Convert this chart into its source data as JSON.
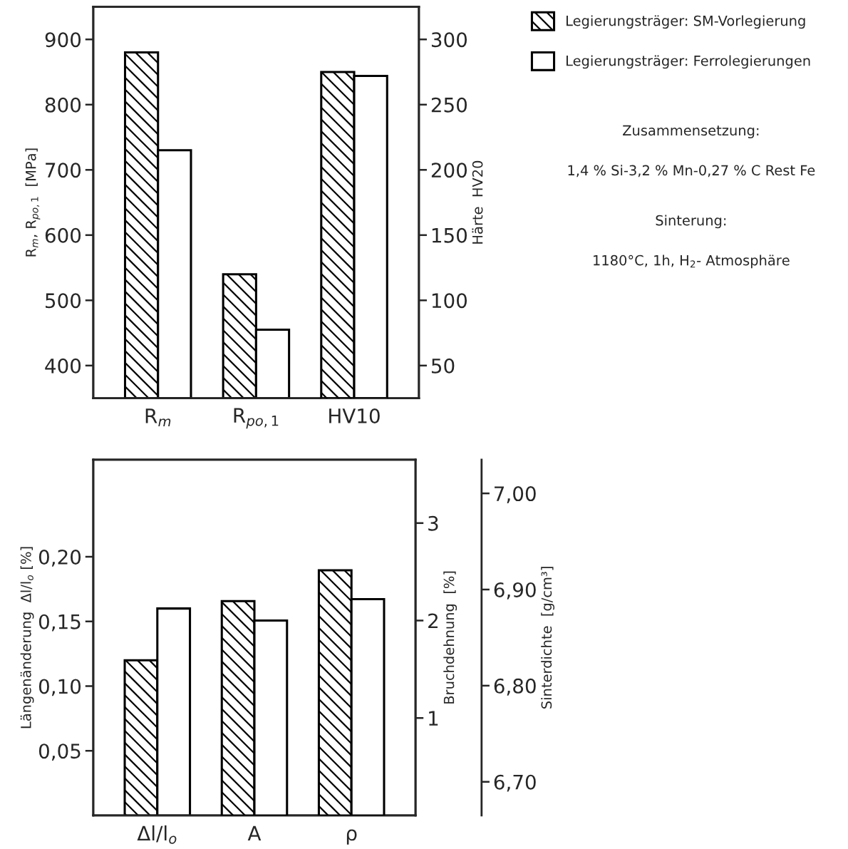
{
  "chart_data": [
    {
      "type": "bar",
      "categories": [
        "R$_{m}$",
        "R$_{po,1}$",
        "HV10"
      ],
      "series": [
        {
          "name": "Legierungsträger: SM-Vorlegierung",
          "color": "#000000",
          "values": [
            880,
            540,
            null
          ]
        },
        {
          "name": "Legierungsträger: Ferrolegierungen",
          "color": "#ffffff",
          "values": [
            730,
            455,
            null
          ]
        },
        {
          "color": "#000000",
          "values": [
            null,
            null,
            275
          ],
          "axis": "y2"
        },
        {
          "color": "#ffffff",
          "values": [
            null,
            null,
            272
          ],
          "axis": "y2"
        }
      ],
      "ylabel": "R$_{m}$, R$_{po,1}$  [MPa]",
      "y2label": "Härte  HV20",
      "ylim": [
        350,
        950
      ],
      "yticks": [
        400,
        500,
        600,
        700,
        800,
        900
      ],
      "y2lim": [
        25,
        325
      ],
      "y2ticks": [
        50,
        100,
        150,
        200,
        250,
        300
      ],
      "legend": "top right",
      "annotations": [
        "Zusammensetzung:",
        "1,4 % Si-3,2 % Mn-0,27 % C Rest Fe",
        "Sinterung:",
        "1180°C, 1h, H$_{2}$- Atmosphäre"
      ]
    },
    {
      "type": "bar",
      "categories": [
        "Δl/l$_{o}$",
        "A",
        "ρ"
      ],
      "series": [
        {
          "color": "#000000",
          "values": [
            0.12,
            null,
            null
          ]
        },
        {
          "color": "#ffffff",
          "values": [
            0.16,
            null,
            null
          ]
        },
        {
          "color": "#000000",
          "values": [
            null,
            2.2,
            null
          ],
          "axis": "y2"
        },
        {
          "color": "#ffffff",
          "values": [
            null,
            2.0,
            null
          ],
          "axis": "y2"
        },
        {
          "color": "#000000",
          "values": [
            null,
            null,
            6.92
          ],
          "axis": "y3"
        },
        {
          "color": "#ffffff",
          "values": [
            null,
            null,
            6.89
          ],
          "axis": "y3"
        }
      ],
      "ylabel": "Längenänderung  Δl/l$_{o}$ [%]",
      "y2label": "Bruchdehnung  [%]",
      "y3label": "Sinterdichte  [g/cm³]",
      "ylim": [
        0,
        0.275
      ],
      "yticks": [
        {
          "value": 0.05,
          "label": "0,05"
        },
        {
          "value": 0.1,
          "label": "0,10"
        },
        {
          "value": 0.15,
          "label": "0,15"
        },
        {
          "value": 0.2,
          "label": "0,20"
        }
      ],
      "y2lim": [
        0,
        3.65
      ],
      "y2ticks": [
        1,
        2,
        3
      ],
      "y3lim": [
        6.665,
        7.035
      ],
      "y3ticks": [
        {
          "value": 6.7,
          "label": "6,70"
        },
        {
          "value": 6.8,
          "label": "6,80"
        },
        {
          "value": 6.9,
          "label": "6,90"
        },
        {
          "value": 7.0,
          "label": "7,00"
        }
      ]
    }
  ]
}
